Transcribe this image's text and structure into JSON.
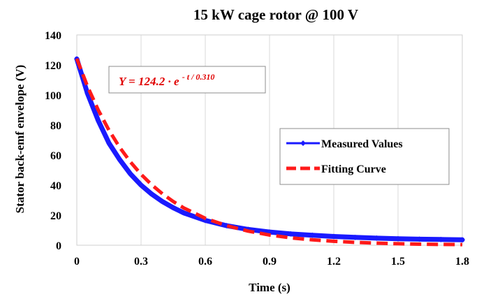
{
  "chart_data": {
    "type": "line",
    "title": "15 kW cage rotor @ 100 V",
    "xlabel": "Time (s)",
    "ylabel": "Stator back-emf envelope (V)",
    "xlim": [
      0,
      1.8
    ],
    "ylim": [
      0,
      140
    ],
    "xticks": [
      "0",
      "0.3",
      "0.6",
      "0.9",
      "1.2",
      "1.5",
      "1.8"
    ],
    "yticks": [
      "0",
      "20",
      "40",
      "60",
      "80",
      "100",
      "120",
      "140"
    ],
    "grid": "vertical",
    "legend": {
      "position": "right",
      "items": [
        "Measured Values",
        "Fitting Curve"
      ]
    },
    "annotation": {
      "prefix": "Y = 124.2 · e",
      "exponent": " - t / 0.310"
    },
    "colors": {
      "measured": "#1a1aff",
      "fit": "#ff1a1a",
      "annotation": "#e00000"
    },
    "series": [
      {
        "name": "Measured Values",
        "x": [
          0,
          0.05,
          0.1,
          0.15,
          0.2,
          0.25,
          0.3,
          0.35,
          0.4,
          0.45,
          0.5,
          0.6,
          0.7,
          0.8,
          0.9,
          1.0,
          1.1,
          1.2,
          1.3,
          1.4,
          1.5,
          1.6,
          1.7,
          1.8
        ],
        "y": [
          124,
          101,
          83,
          68,
          57,
          47.5,
          40,
          34,
          29,
          25,
          21.5,
          16.5,
          13,
          10.5,
          8.8,
          7.5,
          6.6,
          5.8,
          5.2,
          4.7,
          4.3,
          4.0,
          3.8,
          3.6
        ]
      },
      {
        "name": "Fitting Curve",
        "x": [
          0,
          0.05,
          0.1,
          0.15,
          0.2,
          0.25,
          0.3,
          0.35,
          0.4,
          0.45,
          0.5,
          0.6,
          0.7,
          0.8,
          0.9,
          1.0,
          1.1,
          1.2,
          1.3,
          1.4,
          1.5,
          1.6,
          1.7,
          1.8
        ],
        "y": [
          124.2,
          105.7,
          90.0,
          76.6,
          65.2,
          55.5,
          47.2,
          40.2,
          34.2,
          29.1,
          24.8,
          17.9,
          13.0,
          9.4,
          6.8,
          4.9,
          3.6,
          2.6,
          1.9,
          1.4,
          1.0,
          0.7,
          0.5,
          0.4
        ]
      }
    ]
  }
}
